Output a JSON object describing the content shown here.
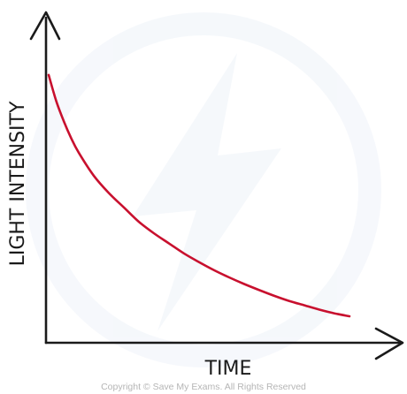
{
  "chart_data": {
    "type": "line",
    "title": "",
    "xlabel": "TIME",
    "ylabel": "LIGHT INTENSITY",
    "ticks_shown": false,
    "grid": false,
    "legend": "none",
    "xlim": [
      0,
      10
    ],
    "ylim": [
      0,
      10
    ],
    "series": [
      {
        "color": "#c8102e",
        "x": [
          0,
          0.25,
          0.5,
          0.75,
          1,
          1.5,
          2,
          2.5,
          3,
          3.5,
          4,
          4.5,
          5,
          5.5,
          6,
          6.5,
          7,
          7.5,
          8,
          8.5,
          9,
          9.5,
          10
        ],
        "y": [
          9.3,
          8.4,
          7.7,
          7.1,
          6.6,
          5.8,
          5.2,
          4.7,
          4.2,
          3.8,
          3.45,
          3.1,
          2.8,
          2.52,
          2.27,
          2.04,
          1.83,
          1.63,
          1.45,
          1.3,
          1.15,
          1.02,
          0.92
        ]
      }
    ]
  },
  "watermark": {
    "copyright": "Copyright © Save My Exams. All Rights Reserved",
    "logo": "save-my-exams-logo"
  },
  "colors": {
    "axis": "#1a1a1a",
    "curve": "#c8102e",
    "watermark": "#eef3f9"
  }
}
